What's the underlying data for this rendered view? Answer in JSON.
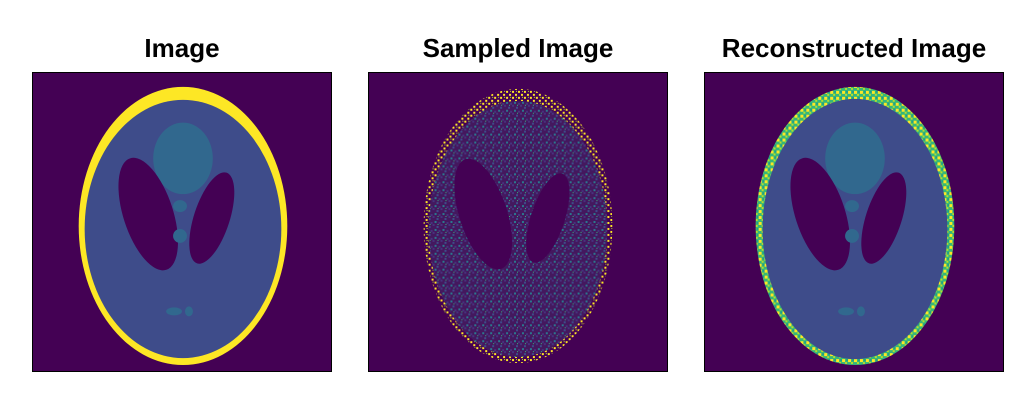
{
  "panels": [
    {
      "title": "Image"
    },
    {
      "title": "Sampled Image"
    },
    {
      "title": "Reconstructed Image"
    }
  ],
  "colors": {
    "background": "#440154",
    "skull": "#fde725",
    "brain": "#3e4c8a",
    "lobes": "#440154",
    "inner": "#31688e",
    "noise_light": "#46337e",
    "noise_teal": "#2a788e",
    "rim_green": "#7ad151"
  }
}
